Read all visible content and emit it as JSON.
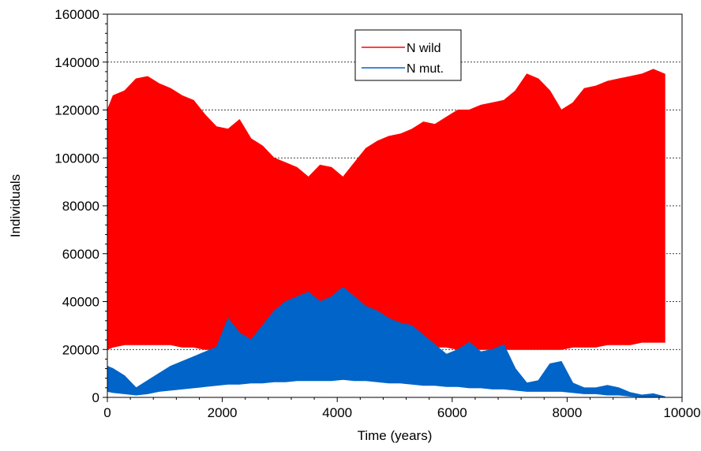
{
  "chart_data": {
    "type": "area",
    "xlabel": "Time (years)",
    "ylabel": "Individuals",
    "xlim": [
      0,
      10000
    ],
    "ylim": [
      0,
      160000
    ],
    "x_ticks": [
      0,
      2000,
      4000,
      6000,
      8000,
      10000
    ],
    "y_ticks": [
      0,
      20000,
      40000,
      60000,
      80000,
      100000,
      120000,
      140000,
      160000
    ],
    "x_tick_labels": [
      "0",
      "2000",
      "4000",
      "6000",
      "8000",
      "10000"
    ],
    "y_tick_labels": [
      "0",
      "20000",
      "40000",
      "60000",
      "80000",
      "100000",
      "120000",
      "140000",
      "160000"
    ],
    "grid": {
      "horizontal": true,
      "style": "dotted"
    },
    "legend": {
      "placement": "top-center"
    },
    "series": [
      {
        "name": "N wild",
        "color": "#ff0000",
        "x": [
          0,
          100,
          300,
          500,
          700,
          900,
          1100,
          1300,
          1500,
          1700,
          1900,
          2100,
          2300,
          2500,
          2700,
          2900,
          3100,
          3300,
          3500,
          3700,
          3900,
          4100,
          4300,
          4500,
          4700,
          4900,
          5100,
          5300,
          5500,
          5700,
          5900,
          6100,
          6300,
          6500,
          6700,
          6900,
          7100,
          7300,
          7500,
          7700,
          7900,
          8100,
          8300,
          8500,
          8700,
          8900,
          9100,
          9300,
          9500,
          9700
        ],
        "upper": [
          120000,
          126000,
          128000,
          133000,
          134000,
          131000,
          129000,
          126000,
          124000,
          118000,
          113000,
          112000,
          116000,
          108000,
          105000,
          100000,
          98000,
          96000,
          92000,
          97000,
          96000,
          92000,
          98000,
          104000,
          107000,
          109000,
          110000,
          112000,
          115000,
          114000,
          117000,
          120000,
          120000,
          122000,
          123000,
          124000,
          128000,
          135000,
          133000,
          128000,
          120000,
          123000,
          129000,
          130000,
          132000,
          133000,
          134000,
          135000,
          137000,
          135000
        ],
        "lower": [
          20000,
          21000,
          22000,
          22000,
          22000,
          22000,
          22000,
          21000,
          21000,
          20000,
          20000,
          20000,
          21000,
          22000,
          22000,
          22000,
          22000,
          22000,
          22000,
          22000,
          22000,
          22000,
          22000,
          22000,
          21000,
          21000,
          21000,
          21000,
          21000,
          21000,
          21000,
          20000,
          20000,
          20000,
          20000,
          20000,
          20000,
          20000,
          20000,
          20000,
          20000,
          21000,
          21000,
          21000,
          22000,
          22000,
          22000,
          23000,
          23000,
          23000
        ]
      },
      {
        "name": "N mut.",
        "color": "#0064c8",
        "x": [
          0,
          100,
          300,
          500,
          700,
          900,
          1100,
          1300,
          1500,
          1700,
          1900,
          2100,
          2300,
          2500,
          2700,
          2900,
          3100,
          3300,
          3500,
          3700,
          3900,
          4100,
          4300,
          4500,
          4700,
          4900,
          5100,
          5300,
          5500,
          5700,
          5900,
          6100,
          6300,
          6500,
          6700,
          6900,
          7100,
          7300,
          7500,
          7700,
          7900,
          8100,
          8300,
          8500,
          8700,
          8900,
          9100,
          9300,
          9500,
          9700
        ],
        "upper": [
          13000,
          12000,
          9000,
          4000,
          7000,
          10000,
          13000,
          15000,
          17000,
          19000,
          21000,
          33000,
          27000,
          24000,
          30000,
          36000,
          40000,
          42000,
          44000,
          40000,
          42000,
          46000,
          42000,
          38000,
          36000,
          33000,
          31000,
          30000,
          26000,
          22000,
          18000,
          20000,
          23000,
          19000,
          20000,
          22000,
          12000,
          6000,
          7000,
          14000,
          15000,
          6000,
          4000,
          4000,
          5000,
          4000,
          2000,
          1000,
          1500,
          300
        ],
        "lower": [
          2500,
          2000,
          1500,
          1000,
          1500,
          2500,
          3000,
          3500,
          4000,
          4500,
          5000,
          5500,
          5500,
          6000,
          6000,
          6500,
          6500,
          7000,
          7000,
          7000,
          7000,
          7500,
          7000,
          7000,
          6500,
          6000,
          6000,
          5500,
          5000,
          5000,
          4500,
          4500,
          4000,
          4000,
          3500,
          3500,
          3000,
          2500,
          2500,
          2500,
          2500,
          2000,
          1500,
          1500,
          1000,
          1000,
          500,
          300,
          200,
          0
        ]
      }
    ]
  }
}
